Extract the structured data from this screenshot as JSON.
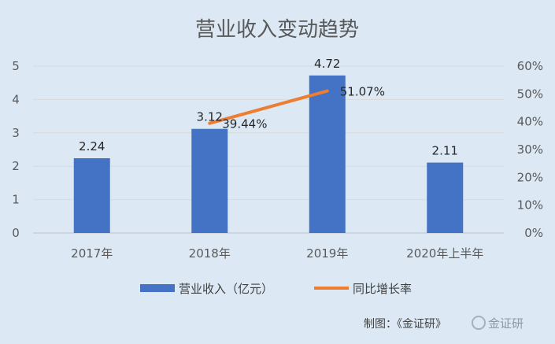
{
  "chart_data": {
    "type": "bar",
    "title": "营业收入变动趋势",
    "categories": [
      "2017年",
      "2018年",
      "2019年",
      "2020年上半年"
    ],
    "series": [
      {
        "name": "营业收入（亿元）",
        "type": "bar",
        "axis": "left",
        "color": "#4472c4",
        "values": [
          2.24,
          3.12,
          4.72,
          2.11
        ],
        "labels": [
          "2.24",
          "3.12",
          "4.72",
          "2.11"
        ]
      },
      {
        "name": "同比增长率",
        "type": "line",
        "axis": "right",
        "color": "#ed7d31",
        "values": [
          null,
          39.44,
          51.07,
          null
        ],
        "labels": [
          "",
          "39.44%",
          "51.07%",
          ""
        ]
      }
    ],
    "left_axis": {
      "ylim": [
        0,
        5
      ],
      "ticks": [
        "0",
        "1",
        "2",
        "3",
        "4",
        "5"
      ]
    },
    "right_axis": {
      "ylim": [
        0,
        60
      ],
      "ticks": [
        "0%",
        "10%",
        "20%",
        "30%",
        "40%",
        "50%",
        "60%"
      ]
    },
    "grid": true,
    "legend_position": "bottom"
  },
  "footer": {
    "credit": "制图：《金证研》",
    "watermark": "金证研"
  }
}
